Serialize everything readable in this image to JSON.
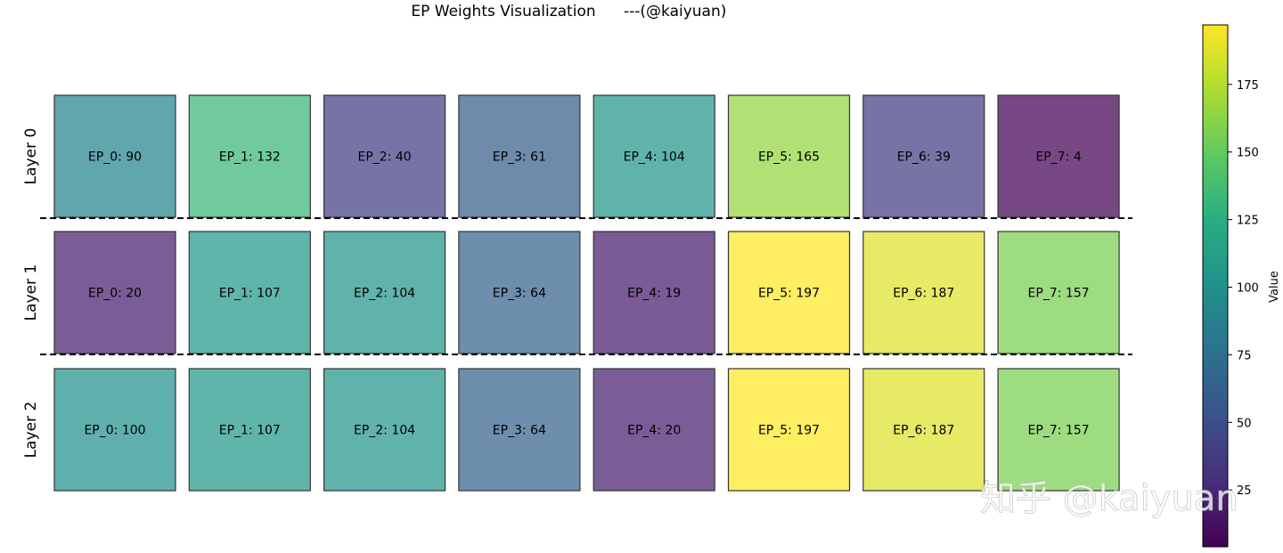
{
  "chart_data": {
    "type": "heatmap",
    "title": "EP Weights Visualization",
    "title_suffix": "---(@kaiyuan)",
    "rows": [
      "Layer 0",
      "Layer 1",
      "Layer 2"
    ],
    "columns": [
      "EP_0",
      "EP_1",
      "EP_2",
      "EP_3",
      "EP_4",
      "EP_5",
      "EP_6",
      "EP_7"
    ],
    "values": [
      [
        90,
        132,
        40,
        61,
        104,
        165,
        39,
        4
      ],
      [
        20,
        107,
        104,
        64,
        19,
        197,
        187,
        157
      ],
      [
        100,
        107,
        104,
        64,
        20,
        197,
        187,
        157
      ]
    ],
    "colormap": "viridis",
    "colorbar": {
      "label": "Value",
      "range": [
        4,
        197
      ],
      "ticks": [
        25,
        50,
        75,
        100,
        125,
        150,
        175
      ]
    },
    "row_separator": "dashed",
    "grid": false
  },
  "watermark": "知乎 @kaiyuan"
}
